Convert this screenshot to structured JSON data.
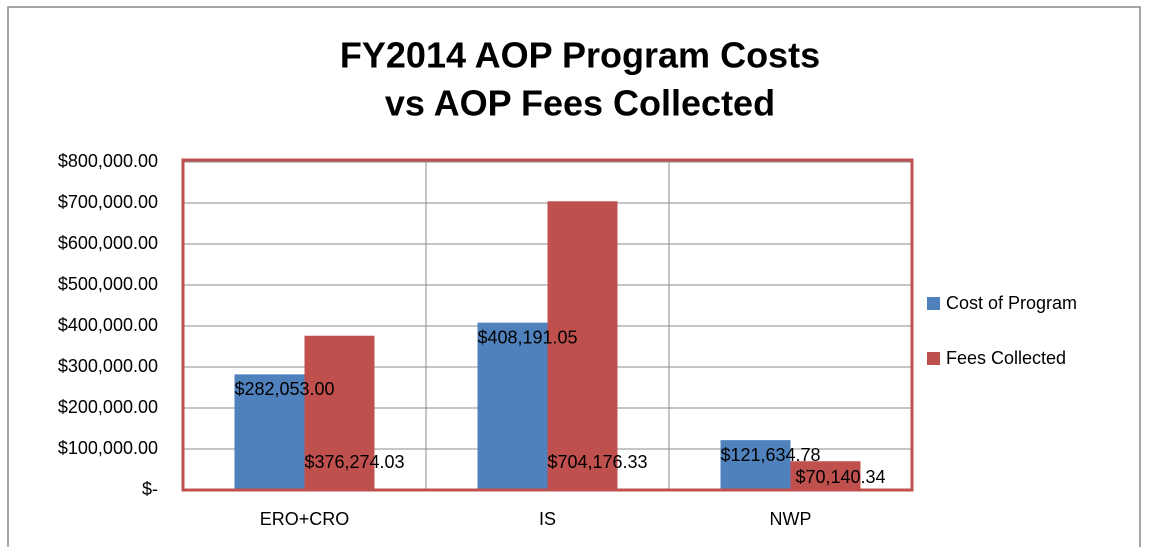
{
  "chart_data": {
    "type": "bar",
    "title": [
      "FY2014 AOP Program Costs",
      "vs AOP Fees Collected"
    ],
    "categories": [
      "ERO+CRO",
      "IS",
      "NWP"
    ],
    "series": [
      {
        "name": "Cost of Program",
        "color": "#4f81bd",
        "values": [
          282053.0,
          408191.05,
          121634.78
        ],
        "value_labels": [
          "$282,053.00",
          "$408,191.05",
          "$121,634.78"
        ]
      },
      {
        "name": "Fees Collected",
        "color": "#c0504d",
        "values": [
          376274.03,
          704176.33,
          70140.34
        ],
        "value_labels": [
          "$376,274.03",
          "$704,176.33",
          "$70,140.34"
        ]
      }
    ],
    "ylim": [
      0,
      800000
    ],
    "yticks": [
      {
        "value": 0,
        "label": "$-"
      },
      {
        "value": 100000,
        "label": "$100,000.00"
      },
      {
        "value": 200000,
        "label": "$200,000.00"
      },
      {
        "value": 300000,
        "label": "$300,000.00"
      },
      {
        "value": 400000,
        "label": "$400,000.00"
      },
      {
        "value": 500000,
        "label": "$500,000.00"
      },
      {
        "value": 600000,
        "label": "$600,000.00"
      },
      {
        "value": 700000,
        "label": "$700,000.00"
      },
      {
        "value": 800000,
        "label": "$800,000.00"
      }
    ],
    "grid": true,
    "legend": "right"
  }
}
